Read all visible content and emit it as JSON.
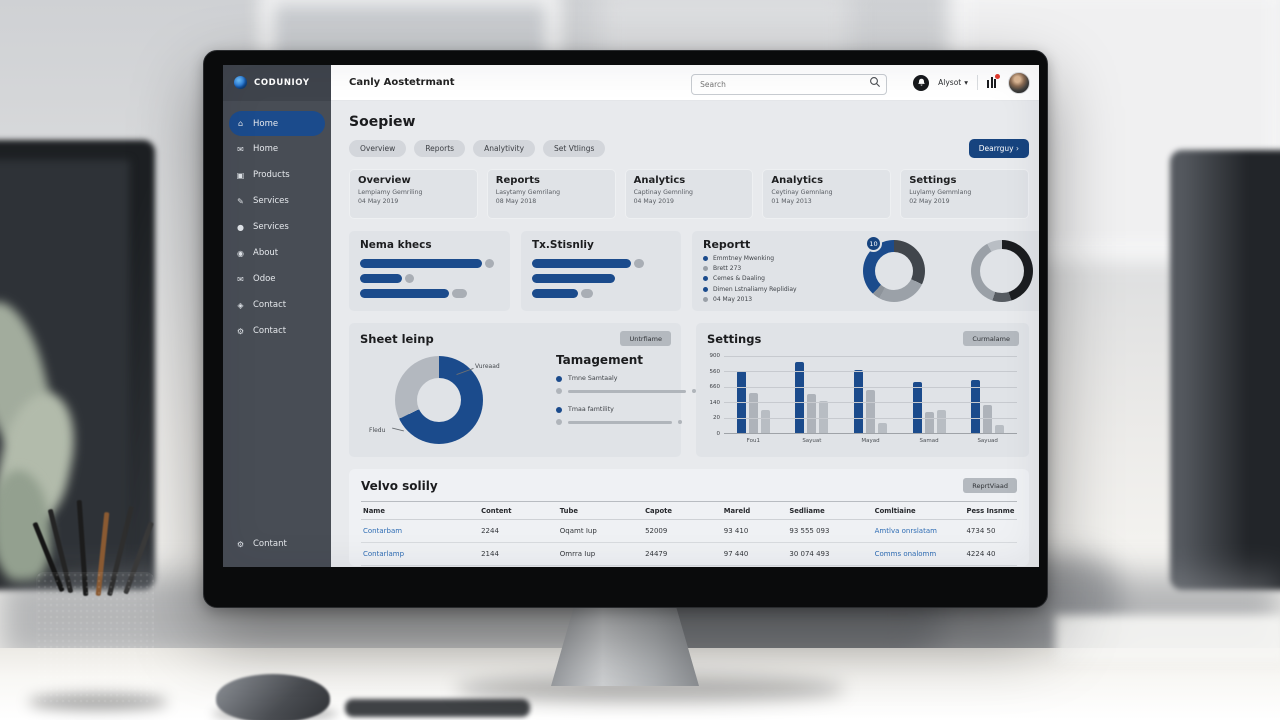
{
  "theme": {
    "accent_blue": "#1b4b8c",
    "logo_blue": "#1e6fd0",
    "sidebar_bg": "#484d55",
    "bar_gray": "#aeb3ba",
    "link_blue": "#2f6db4",
    "badge_red": "#e23b2e"
  },
  "topbar": {
    "logo": "CODUNIOY",
    "title": "Canly Aostetrmant",
    "search_placeholder": "Search",
    "user_name": "Alysot",
    "user_caret": "▾"
  },
  "sidebar": {
    "items": [
      {
        "label": "Home",
        "icon": "home-icon",
        "active": true
      },
      {
        "label": "Home",
        "icon": "mail-icon",
        "active": false
      },
      {
        "label": "Products",
        "icon": "bag-icon",
        "active": false
      },
      {
        "label": "Services",
        "icon": "pen-icon",
        "active": false
      },
      {
        "label": "Services",
        "icon": "circle-icon",
        "active": false
      },
      {
        "label": "About",
        "icon": "user-icon",
        "active": false
      },
      {
        "label": "Odoe",
        "icon": "mail-icon",
        "active": false
      },
      {
        "label": "Contact",
        "icon": "pin-icon",
        "active": false
      },
      {
        "label": "Contact",
        "icon": "gear-icon",
        "active": false
      }
    ],
    "footer_item": {
      "label": "Contant",
      "icon": "gear-icon"
    }
  },
  "main": {
    "page_title": "Soepiew",
    "tabs": [
      "Overview",
      "Reports",
      "Analytivity",
      "Set Vtlings"
    ],
    "primary_button": "Dearrguy  ›",
    "stat_cards": [
      {
        "title": "Overview",
        "subtitle": "Lempiamy Gemriling",
        "date": "04 May 2019"
      },
      {
        "title": "Reports",
        "subtitle": "Lasytamy Gemrilang",
        "date": "08 May 2018"
      },
      {
        "title": "Analytics",
        "subtitle": "Captinay Gemnling",
        "date": "04 May 2019"
      },
      {
        "title": "Analytics",
        "subtitle": "Ceytinay Gemnlang",
        "date": "01 May 2013"
      },
      {
        "title": "Settings",
        "subtitle": "Luylamy Gemmlang",
        "date": "02 May 2019"
      }
    ],
    "progress_cards": [
      {
        "title": "Nema khecs",
        "type": "bar",
        "bars": [
          {
            "value": 88,
            "tail": 6
          },
          {
            "value": 30,
            "tail": 7
          },
          {
            "value": 64,
            "tail": 11
          }
        ]
      },
      {
        "title": "Tx.Stisnliy",
        "type": "bar",
        "bars": [
          {
            "value": 72,
            "tail": 7
          },
          {
            "value": 60,
            "tail": 0
          },
          {
            "value": 33,
            "tail": 9
          }
        ]
      }
    ],
    "report_card": {
      "title": "Reportt",
      "badge": "10",
      "legend": [
        {
          "label": "Emmtney Mwenking",
          "color": "#1b4b8c"
        },
        {
          "label": "Brett 273",
          "color": "#9aa0a7"
        },
        {
          "label": "Cemes & Daaling",
          "color": "#1b4b8c"
        },
        {
          "label": "Dimen Lstnaliamy Replidiay",
          "color": "#1b4b8c"
        },
        {
          "label": "04 May 2013",
          "color": "#9aa0a7"
        }
      ],
      "donut_left": {
        "type": "pie",
        "segments": [
          {
            "name": "dark",
            "color": "#41464c",
            "pct": 32
          },
          {
            "name": "gray",
            "color": "#9ba1a8",
            "pct": 26
          },
          {
            "name": "light",
            "color": "#8d939a",
            "pct": 4
          },
          {
            "name": "blue",
            "color": "#1b4b8c",
            "pct": 38
          }
        ]
      },
      "donut_right": {
        "type": "pie",
        "segments": [
          {
            "name": "black",
            "color": "#1b1d20",
            "pct": 45
          },
          {
            "name": "dark-gray",
            "color": "#565b61",
            "pct": 10
          },
          {
            "name": "gray",
            "color": "#9aa0a7",
            "pct": 37
          },
          {
            "name": "light",
            "color": "#b9bec4",
            "pct": 8
          }
        ]
      }
    },
    "donut_card": {
      "title": "Sheet leinp",
      "button": "Untrfiame",
      "type": "pie",
      "segments": [
        {
          "name": "blue",
          "color": "#1b4b8c",
          "pct": 68
        },
        {
          "name": "gray",
          "color": "#b3b8bf",
          "pct": 32
        }
      ],
      "callout_top": "Vureaad",
      "callout_bottom": "Fledu",
      "legend_title": "Tamagement",
      "legend": [
        {
          "label": "Tmne Samtaaly",
          "color": "#1b4b8c"
        },
        {
          "label": "Tmaa famtility",
          "color": "#1b4b8c"
        }
      ]
    },
    "bar_chart_card": {
      "title": "Settings",
      "button": "Curmalame",
      "type": "bar",
      "ylim": [
        0,
        100
      ],
      "y_ticks": [
        "900",
        "560",
        "660",
        "140",
        "20",
        "0"
      ],
      "categories": [
        "Fou1",
        "Sayuat",
        "Mayad",
        "Samad",
        "Sayuad"
      ],
      "series": [
        {
          "name": "primary",
          "color": "#1b4b8c",
          "values": [
            80,
            92,
            82,
            66,
            69
          ]
        },
        {
          "name": "secondary",
          "color": "#aeb3ba",
          "values": [
            52,
            51,
            56,
            27,
            36
          ]
        },
        {
          "name": "tertiary",
          "color": "#b8bdc3",
          "values": [
            30,
            41,
            13,
            30,
            11
          ]
        }
      ]
    },
    "table": {
      "title": "Velvo solily",
      "button": "ReprtViaad",
      "columns": [
        "Name",
        "Content",
        "Tube",
        "Capote",
        "Mareld",
        "Sedliame",
        "Comltiaine",
        "Pess Insnme"
      ],
      "rows": [
        [
          "Contarbam",
          "2244",
          "Oqamt Iup",
          "52009",
          "93 410",
          "93 555 093",
          "Amtlva onrslatam",
          "4734 50"
        ],
        [
          "Contarlamp",
          "2144",
          "Omrra Iup",
          "24479",
          "97 440",
          "30 074 493",
          "Comms onalomm",
          "4224 40"
        ]
      ],
      "link_columns": [
        0,
        6
      ]
    }
  }
}
